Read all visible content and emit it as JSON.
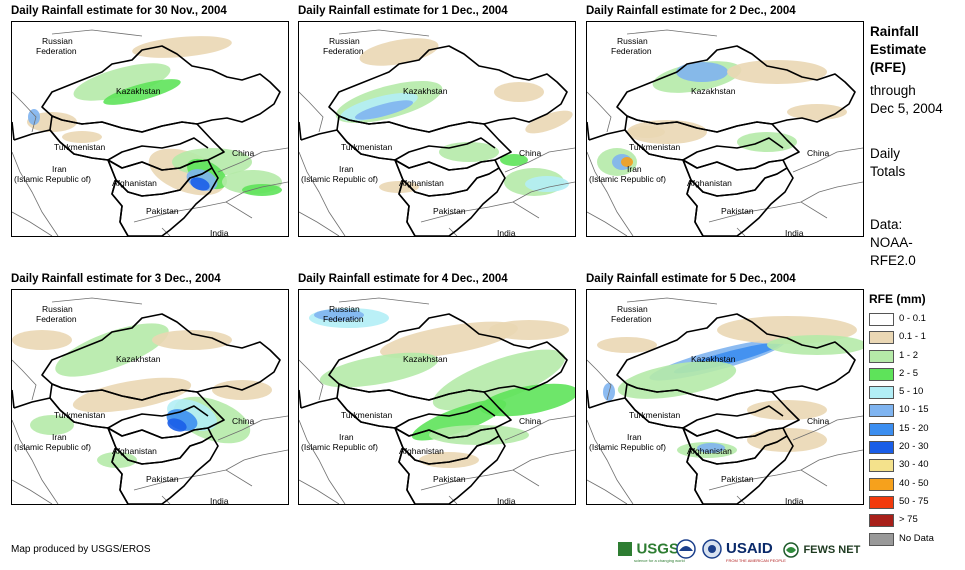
{
  "panels": [
    {
      "title": "Daily Rainfall estimate for 30 Nov., 2004"
    },
    {
      "title": "Daily Rainfall estimate for 1 Dec., 2004"
    },
    {
      "title": "Daily Rainfall estimate for 2 Dec., 2004"
    },
    {
      "title": "Daily Rainfall estimate for 3 Dec., 2004"
    },
    {
      "title": "Daily Rainfall estimate for 4 Dec., 2004"
    },
    {
      "title": "Daily Rainfall estimate for 5 Dec., 2004"
    }
  ],
  "map_labels": {
    "russia_1": "Russian",
    "russia_2": "Federation",
    "kazakhstan": "Kazakhstan",
    "turkmenistan": "Turkmenistan",
    "china": "China",
    "iran_1": "Iran",
    "iran_2": "(Islamic Republic of)",
    "afghanistan": "Afghanistan",
    "pakistan": "Pakistan",
    "india": "India"
  },
  "sidebar": {
    "heading_1": "Rainfall",
    "heading_2": "Estimate",
    "heading_3": "(RFE)",
    "through_1": "through",
    "through_2": "Dec 5, 2004",
    "totals_1": "Daily",
    "totals_2": "Totals",
    "data_1": "Data:",
    "data_2": "NOAA-",
    "data_3": "RFE2.0"
  },
  "legend": {
    "title": "RFE (mm)",
    "items": [
      {
        "label": "0 - 0.1",
        "color": "#ffffff"
      },
      {
        "label": "0.1 - 1",
        "color": "#ead7b4"
      },
      {
        "label": "1 - 2",
        "color": "#b5eaa8"
      },
      {
        "label": "2 - 5",
        "color": "#5ee35a"
      },
      {
        "label": "5 - 10",
        "color": "#b2eef6"
      },
      {
        "label": "10 - 15",
        "color": "#7fb4f0"
      },
      {
        "label": "15 - 20",
        "color": "#3c8ef0"
      },
      {
        "label": "20 - 30",
        "color": "#1a5ee8"
      },
      {
        "label": "30 - 40",
        "color": "#f4e28c"
      },
      {
        "label": "40 - 50",
        "color": "#f6a11c"
      },
      {
        "label": "50 - 75",
        "color": "#f23a0c"
      },
      {
        "label": "> 75",
        "color": "#a8201a"
      },
      {
        "label": "No Data",
        "color": "#999999"
      }
    ]
  },
  "footer": {
    "credit": "Map produced by USGS/EROS",
    "logo_usgs": "USGS",
    "logo_usgs_tagline": "science for a changing world",
    "logo_usaid": "USAID",
    "logo_usaid_tagline": "FROM THE AMERICAN PEOPLE",
    "logo_fews": "FEWS NET"
  }
}
